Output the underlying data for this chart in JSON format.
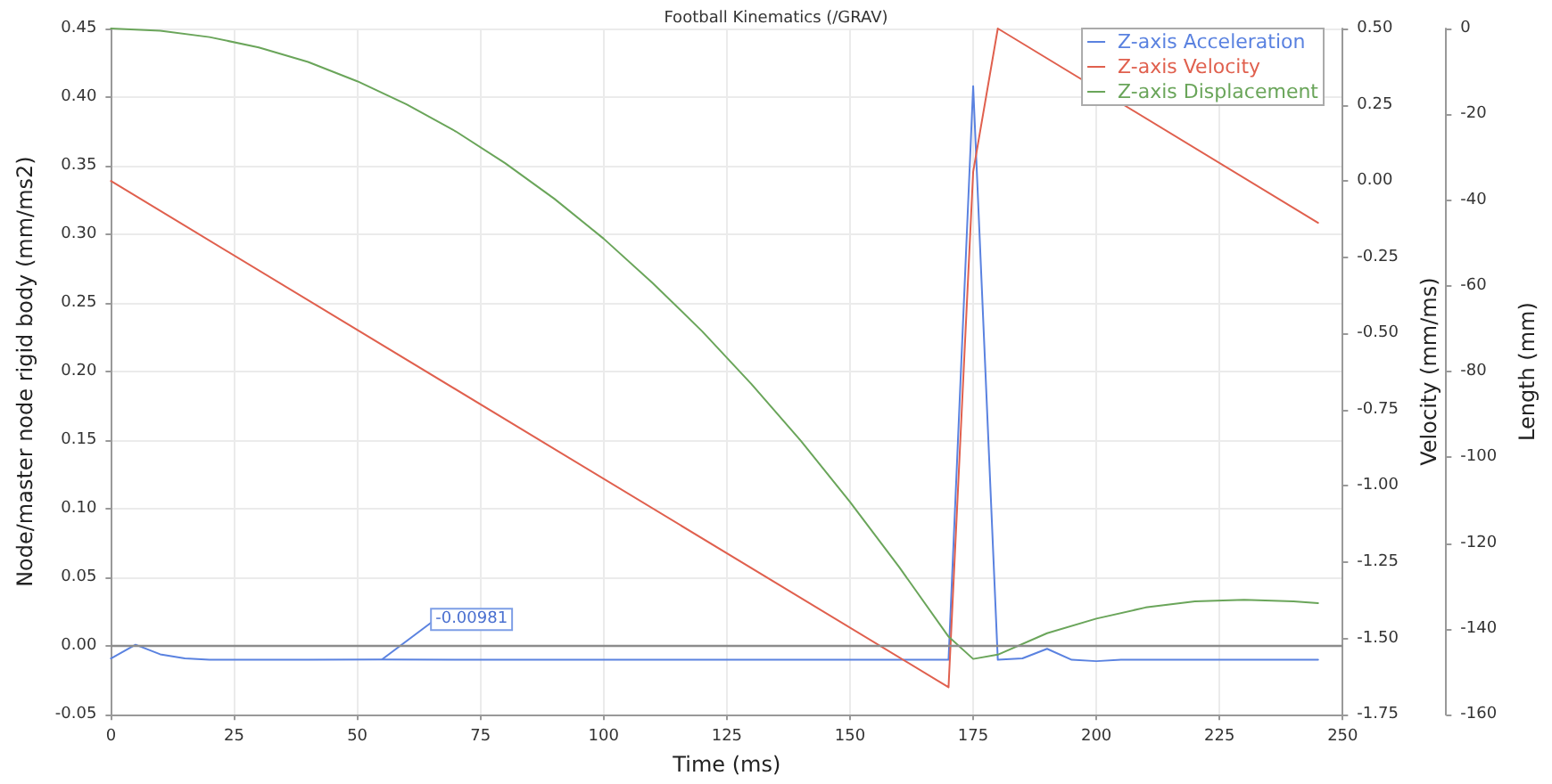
{
  "chart_data": {
    "type": "line",
    "title": "Football Kinematics (/GRAV)",
    "xlabel": "Time (ms)",
    "ylabel": "Node/master node rigid body (mm/ms2)",
    "y2label": "Velocity (mm/ms)",
    "y3label": "Length (mm)",
    "xlim": [
      0,
      250
    ],
    "xticks": [
      0,
      25,
      50,
      75,
      100,
      125,
      150,
      175,
      200,
      225,
      250
    ],
    "ylim": [
      -0.05,
      0.45
    ],
    "yticks": [
      {
        "value": -0.05,
        "label": "-0.05"
      },
      {
        "value": 0,
        "label": "0.00"
      },
      {
        "value": 0.05,
        "label": "0.05"
      },
      {
        "value": 0.1,
        "label": "0.10"
      },
      {
        "value": 0.15,
        "label": "0.15"
      },
      {
        "value": 0.2,
        "label": "0.20"
      },
      {
        "value": 0.25,
        "label": "0.25"
      },
      {
        "value": 0.3,
        "label": "0.30"
      },
      {
        "value": 0.35,
        "label": "0.35"
      },
      {
        "value": 0.4,
        "label": "0.40"
      },
      {
        "value": 0.45,
        "label": "0.45"
      }
    ],
    "y2lim": [
      -1.75,
      0.5
    ],
    "y2ticks": [
      {
        "value": -1.75,
        "label": "-1.75"
      },
      {
        "value": -1.5,
        "label": "-1.50"
      },
      {
        "value": -1.25,
        "label": "-1.25"
      },
      {
        "value": -1,
        "label": "-1.00"
      },
      {
        "value": -0.75,
        "label": "-0.75"
      },
      {
        "value": -0.5,
        "label": "-0.50"
      },
      {
        "value": -0.25,
        "label": "-0.25"
      },
      {
        "value": 0,
        "label": "0.00"
      },
      {
        "value": 0.25,
        "label": "0.25"
      },
      {
        "value": 0.5,
        "label": "0.50"
      }
    ],
    "y3lim": [
      -160,
      0
    ],
    "y3ticks": [
      -160,
      -140,
      -120,
      -100,
      -80,
      -60,
      -40,
      -20,
      0
    ],
    "grid": true,
    "legend": "top right",
    "marker": "none",
    "line_style": "solid",
    "ref_lines": [
      {
        "axis": "y",
        "value": 0,
        "color": "#8c8c8c"
      }
    ],
    "annotations": [
      {
        "text": "-0.00981",
        "x": 55,
        "y": -0.00981
      }
    ],
    "series": [
      {
        "name": "Z-axis Acceleration",
        "color": "#5a82e0",
        "x": [
          0,
          5,
          10,
          15,
          20,
          30,
          40,
          55,
          100,
          150,
          170,
          175,
          180,
          185,
          190,
          195,
          200,
          205,
          220,
          245
        ],
        "values": [
          -0.009,
          0.001,
          -0.006,
          -0.009,
          -0.01,
          -0.01,
          -0.01,
          -0.00981,
          -0.01,
          -0.01,
          -0.01,
          0.408,
          -0.01,
          -0.009,
          -0.002,
          -0.01,
          -0.011,
          -0.01,
          -0.01,
          -0.01
        ]
      },
      {
        "name": "Z-axis Velocity",
        "color": "#e0604e",
        "axis": "y2",
        "x": [
          0,
          170,
          175,
          180,
          245
        ],
        "values": [
          0,
          -1.66,
          0.03,
          0.5,
          -0.137
        ]
      },
      {
        "name": "Z-axis Displacement",
        "color": "#6aa55a",
        "axis": "y3",
        "x": [
          0,
          10,
          20,
          30,
          40,
          50,
          60,
          70,
          80,
          90,
          100,
          110,
          120,
          130,
          140,
          150,
          160,
          170,
          175,
          180,
          190,
          200,
          210,
          220,
          230,
          240,
          245
        ],
        "values": [
          0,
          -0.5,
          -2,
          -4.4,
          -7.8,
          -12.3,
          -17.7,
          -24,
          -31.4,
          -39.7,
          -49,
          -59.4,
          -70.6,
          -82.9,
          -96.1,
          -110.4,
          -125.6,
          -141.8,
          -147,
          -146,
          -141,
          -137.6,
          -135,
          -133.6,
          -133.2,
          -133.6,
          -134
        ]
      }
    ]
  }
}
